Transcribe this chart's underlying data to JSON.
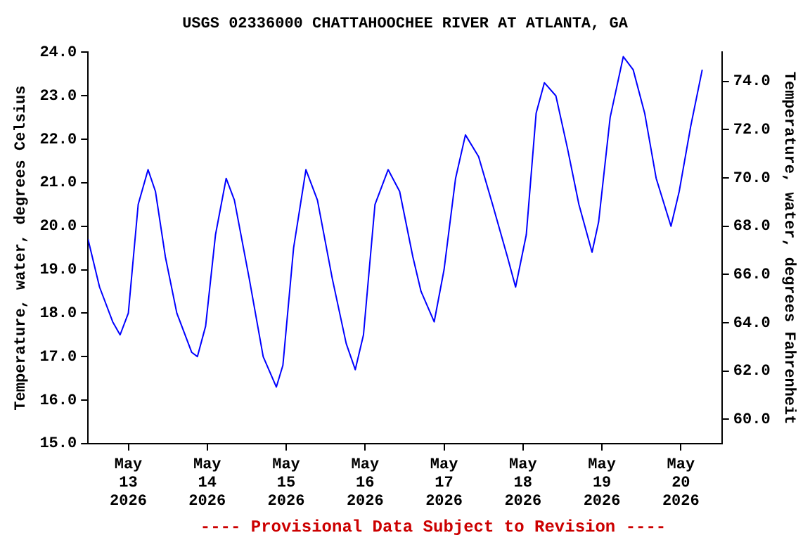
{
  "chart_data": {
    "type": "line",
    "title": "USGS 02336000 CHATTAHOOCHEE RIVER AT ATLANTA, GA",
    "ylabel": "Temperature, water, degrees Celsius",
    "y2label": "Temperature, water, degrees Fahrenheit",
    "annotations": [
      "---- Provisional Data Subject to Revision ----"
    ],
    "x": [
      "2026-05-12T11:45",
      "2026-05-12T15:15",
      "2026-05-12T19:15",
      "2026-05-12T21:30",
      "2026-05-13T00:00",
      "2026-05-13T03:00",
      "2026-05-13T06:00",
      "2026-05-13T08:15",
      "2026-05-13T11:15",
      "2026-05-13T14:45",
      "2026-05-13T19:15",
      "2026-05-13T21:00",
      "2026-05-13T23:30",
      "2026-05-14T02:30",
      "2026-05-14T05:45",
      "2026-05-14T08:15",
      "2026-05-14T12:45",
      "2026-05-14T17:00",
      "2026-05-14T21:00",
      "2026-05-14T23:00",
      "2026-05-15T02:15",
      "2026-05-15T06:00",
      "2026-05-15T09:30",
      "2026-05-15T14:00",
      "2026-05-15T18:15",
      "2026-05-15T21:00",
      "2026-05-15T23:30",
      "2026-05-16T03:00",
      "2026-05-16T07:00",
      "2026-05-16T10:30",
      "2026-05-16T14:30",
      "2026-05-16T17:00",
      "2026-05-16T21:00",
      "2026-05-17T00:00",
      "2026-05-17T03:30",
      "2026-05-17T06:30",
      "2026-05-17T10:30",
      "2026-05-17T14:45",
      "2026-05-17T19:15",
      "2026-05-17T21:45",
      "2026-05-18T01:00",
      "2026-05-18T04:00",
      "2026-05-18T06:30",
      "2026-05-18T10:00",
      "2026-05-18T13:30",
      "2026-05-18T17:00",
      "2026-05-18T21:00",
      "2026-05-18T23:00",
      "2026-05-19T02:30",
      "2026-05-19T06:30",
      "2026-05-19T09:30",
      "2026-05-19T13:00",
      "2026-05-19T16:30",
      "2026-05-19T21:00",
      "2026-05-19T23:30",
      "2026-05-20T03:00",
      "2026-05-20T06:30"
    ],
    "series": [
      {
        "color": "#0000ff",
        "values": [
          19.7,
          18.6,
          17.8,
          17.5,
          18.0,
          20.5,
          21.3,
          20.8,
          19.3,
          18.0,
          17.1,
          17.0,
          17.7,
          19.8,
          21.1,
          20.6,
          18.8,
          17.0,
          16.3,
          16.8,
          19.5,
          21.3,
          20.6,
          18.8,
          17.3,
          16.7,
          17.5,
          20.5,
          21.3,
          20.8,
          19.3,
          18.5,
          17.8,
          19.0,
          21.1,
          22.1,
          21.6,
          20.5,
          19.3,
          18.6,
          19.8,
          22.6,
          23.3,
          23.0,
          21.8,
          20.5,
          19.4,
          20.1,
          22.5,
          23.9,
          23.6,
          22.6,
          21.1,
          20.0,
          20.8,
          22.3,
          23.6
        ]
      }
    ],
    "xlim": [
      "2026-05-12T11:45",
      "2026-05-20T12:30"
    ],
    "xticks": [
      {
        "value": "2026-05-13",
        "label": "May\n13\n2026"
      },
      {
        "value": "2026-05-14",
        "label": "May\n14\n2026"
      },
      {
        "value": "2026-05-15",
        "label": "May\n15\n2026"
      },
      {
        "value": "2026-05-16",
        "label": "May\n16\n2026"
      },
      {
        "value": "2026-05-17",
        "label": "May\n17\n2026"
      },
      {
        "value": "2026-05-18",
        "label": "May\n18\n2026"
      },
      {
        "value": "2026-05-19",
        "label": "May\n19\n2026"
      },
      {
        "value": "2026-05-20",
        "label": "May\n20\n2026"
      }
    ],
    "ylim": [
      15,
      24
    ],
    "yticks": [
      {
        "value": 15,
        "label": "15.0"
      },
      {
        "value": 16,
        "label": "16.0"
      },
      {
        "value": 17,
        "label": "17.0"
      },
      {
        "value": 18,
        "label": "18.0"
      },
      {
        "value": 19,
        "label": "19.0"
      },
      {
        "value": 20,
        "label": "20.0"
      },
      {
        "value": 21,
        "label": "21.0"
      },
      {
        "value": 22,
        "label": "22.0"
      },
      {
        "value": 23,
        "label": "23.0"
      },
      {
        "value": 24,
        "label": "24.0"
      }
    ],
    "y2lim": [
      59,
      75.2
    ],
    "y2ticks": [
      {
        "value": 60,
        "label": "60.0"
      },
      {
        "value": 62,
        "label": "62.0"
      },
      {
        "value": 64,
        "label": "64.0"
      },
      {
        "value": 66,
        "label": "66.0"
      },
      {
        "value": 68,
        "label": "68.0"
      },
      {
        "value": 70,
        "label": "70.0"
      },
      {
        "value": 72,
        "label": "72.0"
      },
      {
        "value": 74,
        "label": "74.0"
      }
    ],
    "grid": false,
    "legend": false,
    "marker": "none",
    "line_style": "solid"
  }
}
